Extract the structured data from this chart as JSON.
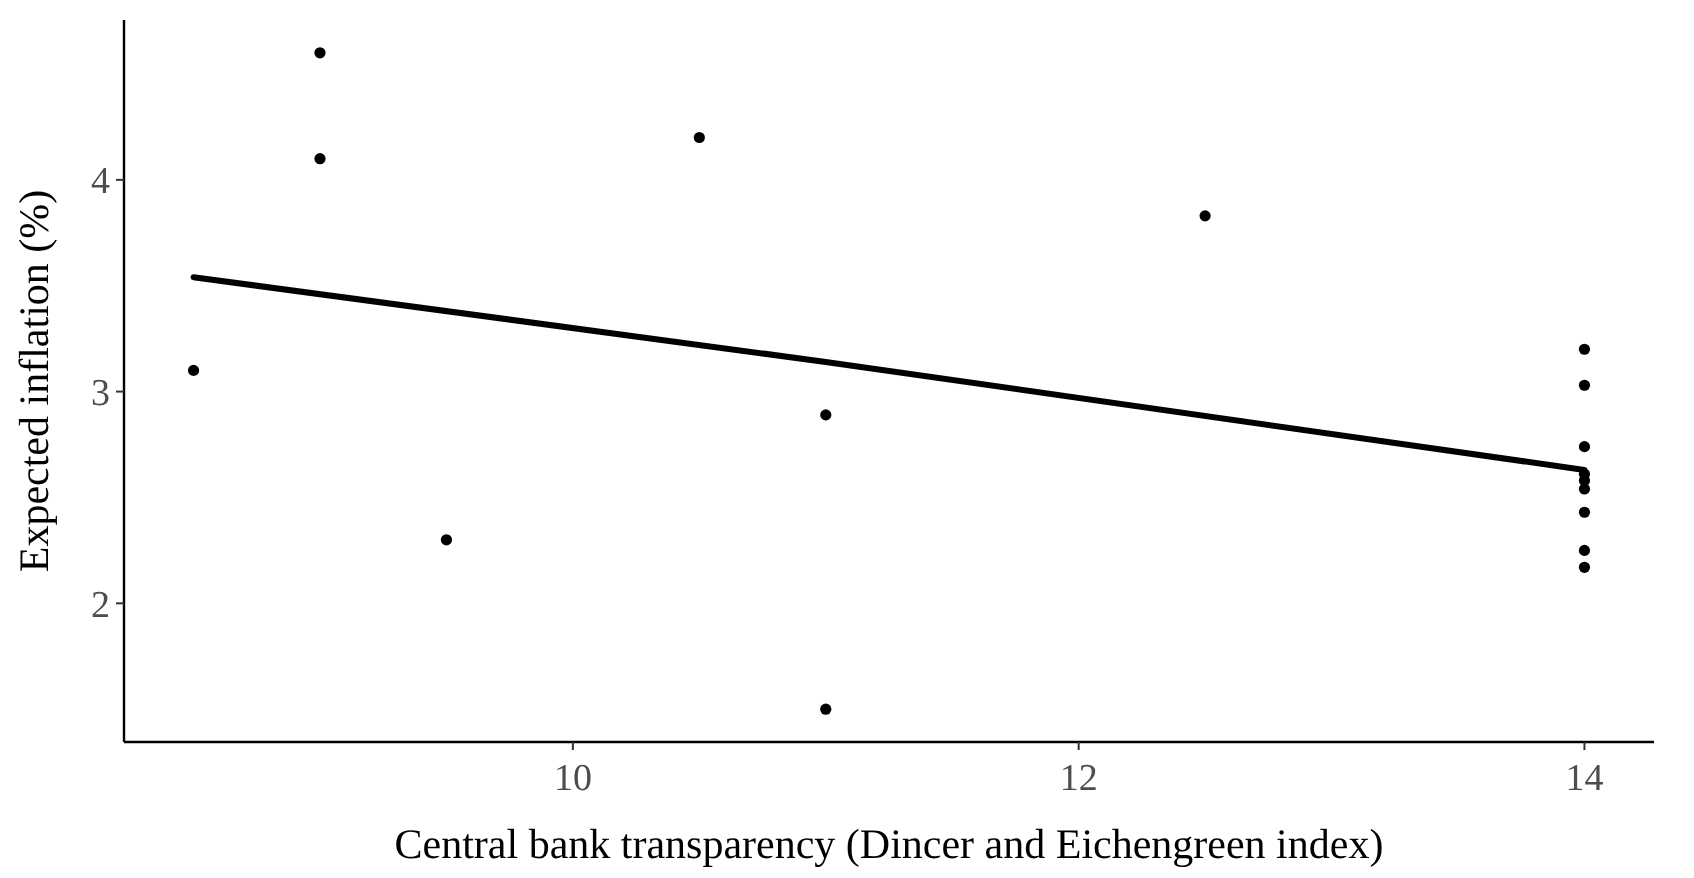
{
  "chart_data": {
    "type": "scatter",
    "xlabel": "Central bank transparency (Dincer and Eichengreen index)",
    "ylabel": "Expected inflation (%)",
    "xlim": [
      8.225,
      14.275
    ],
    "xticks": [
      10,
      12,
      14
    ],
    "ylim": [
      1.345,
      4.755
    ],
    "yticks": [
      2,
      3,
      4
    ],
    "grid": false,
    "series": [
      {
        "color": "#000000",
        "marker": "circle",
        "x": [
          8.5,
          9,
          9,
          9.5,
          10.5,
          11,
          11,
          12.5,
          14,
          14,
          14,
          14,
          14,
          14,
          14,
          14,
          14
        ],
        "values": [
          3.1,
          4.6,
          4.1,
          2.3,
          4.2,
          2.89,
          1.5,
          3.83,
          3.2,
          3.03,
          2.74,
          2.61,
          2.58,
          2.54,
          2.43,
          2.25,
          2.17
        ]
      },
      {
        "type": "line",
        "color": "#000000",
        "line_style": "solid",
        "x": [
          8.5,
          11,
          14
        ],
        "values": [
          3.54,
          3.14,
          2.63
        ]
      }
    ]
  }
}
